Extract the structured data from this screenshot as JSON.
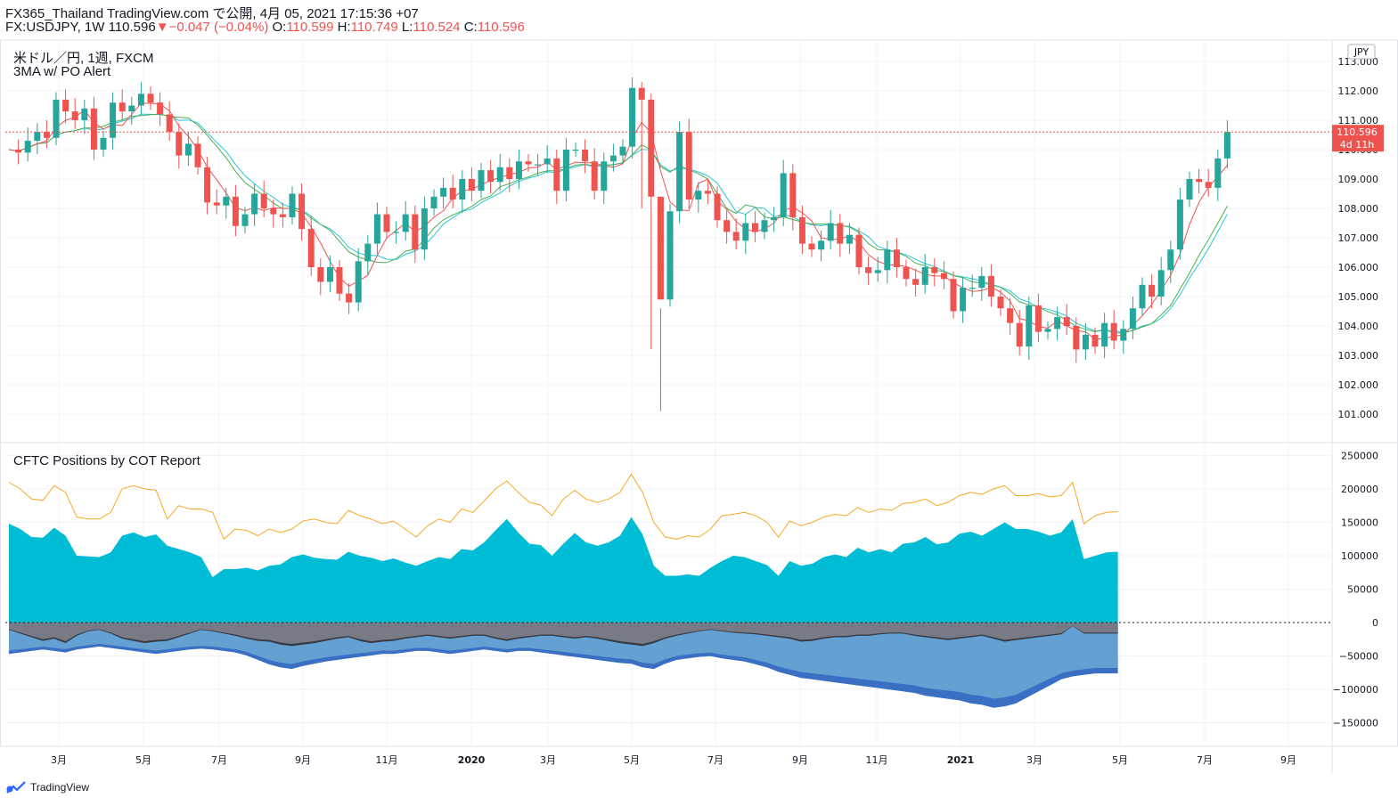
{
  "header": {
    "publish_line": "FX365_Thailand TradingView.com で公開, 4月 05, 2021 17:15:36 +07",
    "symbol_interval": "FX:USDJPY, 1W",
    "last": "110.596",
    "arrow": "▼",
    "change": "−0.047 (−0.04%)",
    "o_label": "O:",
    "o_value": "110.599",
    "h_label": "H:",
    "h_value": "110.749",
    "l_label": "L:",
    "l_value": "110.524",
    "c_label": "C:",
    "c_value": "110.596"
  },
  "main_pane": {
    "title": "米ドル／円, 1週, FXCM",
    "indicator": "3MA w/ PO Alert",
    "currency_badge": "JPY",
    "price_label": "110.596",
    "countdown_label": "4d 11h"
  },
  "cot_pane": {
    "title": "CFTC Positions by COT Report"
  },
  "branding": {
    "name": "TradingView"
  },
  "colors": {
    "up": "#26a69a",
    "down": "#ef5350",
    "ma_fast": "#ef5350",
    "ma_mid": "#4caf50",
    "ma_slow": "#26c6da",
    "cot_line": "#f9a825",
    "cot_area_pos": "#00bcd4",
    "cot_area_gray": "#787b86",
    "cot_area_dark": "#363a45",
    "cot_area_lightblue": "#64a0d2",
    "cot_area_blue": "#3a6fc4"
  },
  "chart_data": [
    {
      "type": "candlestick",
      "title": "米ドル／円, 1週, FXCM",
      "price_axis": [
        101.0,
        102.0,
        103.0,
        104.0,
        105.0,
        106.0,
        107.0,
        108.0,
        109.0,
        110.0,
        111.0,
        112.0,
        113.0
      ],
      "time_axis": [
        "3月",
        "5月",
        "7月",
        "9月",
        "11月",
        "2020",
        "3月",
        "5月",
        "7月",
        "9月",
        "11月",
        "2021",
        "3月",
        "5月",
        "7月",
        "9月"
      ],
      "ohlc_close_path": [
        110.0,
        109.9,
        110.3,
        110.6,
        110.4,
        111.7,
        111.3,
        111.0,
        111.4,
        110.0,
        110.4,
        111.6,
        111.3,
        111.5,
        111.9,
        111.6,
        111.2,
        110.6,
        109.8,
        110.2,
        109.4,
        108.2,
        108.1,
        108.4,
        107.4,
        107.8,
        108.5,
        108.0,
        107.8,
        107.7,
        108.5,
        107.3,
        106.0,
        105.5,
        106.0,
        105.1,
        104.8,
        106.2,
        106.8,
        107.8,
        107.2,
        107.2,
        107.8,
        106.6,
        108.0,
        108.4,
        108.7,
        108.3,
        109.0,
        108.6,
        109.3,
        108.9,
        109.4,
        109.0,
        109.6,
        109.5,
        109.5,
        109.7,
        108.6,
        110.0,
        110.0,
        109.6,
        108.6,
        109.6,
        109.8,
        110.1,
        112.1,
        111.7,
        108.4,
        104.9,
        107.9,
        110.6,
        108.3,
        108.6,
        108.5,
        107.6,
        107.2,
        106.9,
        107.5,
        107.2,
        107.6,
        107.7,
        109.2,
        107.7,
        106.8,
        106.6,
        106.9,
        107.5,
        106.8,
        107.1,
        106.0,
        105.8,
        105.9,
        106.6,
        106.0,
        105.6,
        105.4,
        106.0,
        105.8,
        105.6,
        104.5,
        105.3,
        105.3,
        105.7,
        105.0,
        104.6,
        104.1,
        103.3,
        104.7,
        103.8,
        103.9,
        104.3,
        104.0,
        103.2,
        103.7,
        103.3,
        104.1,
        103.5,
        103.9,
        104.6,
        105.4,
        105.0,
        105.9,
        106.6,
        108.3,
        109.0,
        108.9,
        108.7,
        109.7,
        110.6
      ]
    },
    {
      "type": "area",
      "title": "CFTC Positions by COT Report",
      "y_axis": [
        -150000,
        -100000,
        -50000,
        0,
        50000,
        100000,
        150000,
        200000,
        250000
      ],
      "series": [
        {
          "values": [
            210000,
            200000,
            185000,
            183000,
            205000,
            195000,
            158000,
            155000,
            155000,
            165000,
            200000,
            205000,
            200000,
            198000,
            155000,
            175000,
            170000,
            170000,
            165000,
            125000,
            140000,
            138000,
            130000,
            140000,
            135000,
            140000,
            152000,
            155000,
            150000,
            148000,
            168000,
            160000,
            155000,
            148000,
            152000,
            140000,
            128000,
            145000,
            155000,
            150000,
            170000,
            165000,
            182000,
            200000,
            212000,
            195000,
            180000,
            176000,
            160000,
            185000,
            198000,
            185000,
            180000,
            185000,
            195000,
            222000,
            195000,
            150000,
            128000,
            125000,
            130000,
            128000,
            140000,
            160000,
            162000,
            165000,
            160000,
            150000,
            128000,
            152000,
            145000,
            150000,
            158000,
            162000,
            160000,
            172000,
            165000,
            170000,
            168000,
            178000,
            180000,
            185000,
            175000,
            180000,
            190000,
            195000,
            192000,
            200000,
            205000,
            190000,
            190000,
            193000,
            188000,
            190000,
            210000,
            148000,
            160000,
            165000,
            166000
          ]
        },
        {
          "values": [
            148000,
            140000,
            128000,
            127000,
            142000,
            130000,
            100000,
            99000,
            98000,
            105000,
            130000,
            135000,
            128000,
            132000,
            115000,
            110000,
            105000,
            98000,
            68000,
            80000,
            80000,
            82000,
            78000,
            85000,
            87000,
            98000,
            102000,
            97000,
            95000,
            94000,
            106000,
            100000,
            97000,
            92000,
            96000,
            90000,
            85000,
            92000,
            98000,
            95000,
            110000,
            108000,
            120000,
            138000,
            155000,
            135000,
            118000,
            116000,
            100000,
            118000,
            134000,
            120000,
            115000,
            120000,
            130000,
            158000,
            132000,
            85000,
            70000,
            70000,
            72000,
            70000,
            82000,
            92000,
            100000,
            98000,
            92000,
            86000,
            70000,
            92000,
            85000,
            88000,
            98000,
            102000,
            98000,
            112000,
            105000,
            110000,
            105000,
            118000,
            120000,
            128000,
            117000,
            120000,
            133000,
            136000,
            130000,
            140000,
            150000,
            140000,
            140000,
            136000,
            130000,
            135000,
            155000,
            95000,
            100000,
            105000,
            106000
          ]
        },
        {
          "values": [
            -10000,
            -15000,
            -20000,
            -25000,
            -22000,
            -28000,
            -18000,
            -12000,
            -10000,
            -15000,
            -22000,
            -25000,
            -28000,
            -26000,
            -25000,
            -20000,
            -15000,
            -10000,
            -12000,
            -15000,
            -18000,
            -22000,
            -25000,
            -26000,
            -30000,
            -32000,
            -30000,
            -28000,
            -25000,
            -22000,
            -20000,
            -25000,
            -28000,
            -26000,
            -25000,
            -22000,
            -20000,
            -18000,
            -20000,
            -22000,
            -20000,
            -18000,
            -18000,
            -22000,
            -25000,
            -22000,
            -20000,
            -18000,
            -18000,
            -20000,
            -22000,
            -20000,
            -22000,
            -25000,
            -28000,
            -30000,
            -32000,
            -28000,
            -22000,
            -18000,
            -15000,
            -12000,
            -10000,
            -12000,
            -14000,
            -15000,
            -16000,
            -18000,
            -20000,
            -22000,
            -26000,
            -25000,
            -22000,
            -20000,
            -20000,
            -18000,
            -18000,
            -16000,
            -15000,
            -15000,
            -18000,
            -20000,
            -22000,
            -24000,
            -22000,
            -20000,
            -18000,
            -22000,
            -26000,
            -24000,
            -22000,
            -20000,
            -18000,
            -16000,
            -5000,
            -15000,
            -15000,
            -15000,
            -15000
          ]
        },
        {
          "values": [
            -42000,
            -40000,
            -38000,
            -36000,
            -38000,
            -40000,
            -36000,
            -34000,
            -32000,
            -34000,
            -36000,
            -38000,
            -40000,
            -42000,
            -40000,
            -38000,
            -36000,
            -35000,
            -36000,
            -38000,
            -40000,
            -44000,
            -50000,
            -56000,
            -60000,
            -62000,
            -58000,
            -55000,
            -52000,
            -50000,
            -48000,
            -46000,
            -44000,
            -42000,
            -42000,
            -40000,
            -38000,
            -38000,
            -40000,
            -42000,
            -40000,
            -38000,
            -36000,
            -38000,
            -40000,
            -38000,
            -38000,
            -40000,
            -42000,
            -44000,
            -46000,
            -48000,
            -50000,
            -52000,
            -54000,
            -55000,
            -60000,
            -62000,
            -55000,
            -50000,
            -48000,
            -46000,
            -45000,
            -48000,
            -50000,
            -52000,
            -56000,
            -60000,
            -66000,
            -70000,
            -74000,
            -76000,
            -78000,
            -80000,
            -82000,
            -84000,
            -86000,
            -88000,
            -90000,
            -92000,
            -94000,
            -98000,
            -100000,
            -102000,
            -104000,
            -108000,
            -110000,
            -114000,
            -112000,
            -108000,
            -100000,
            -92000,
            -84000,
            -76000,
            -72000,
            -70000,
            -68000,
            -68000,
            -68000
          ]
        }
      ]
    }
  ]
}
